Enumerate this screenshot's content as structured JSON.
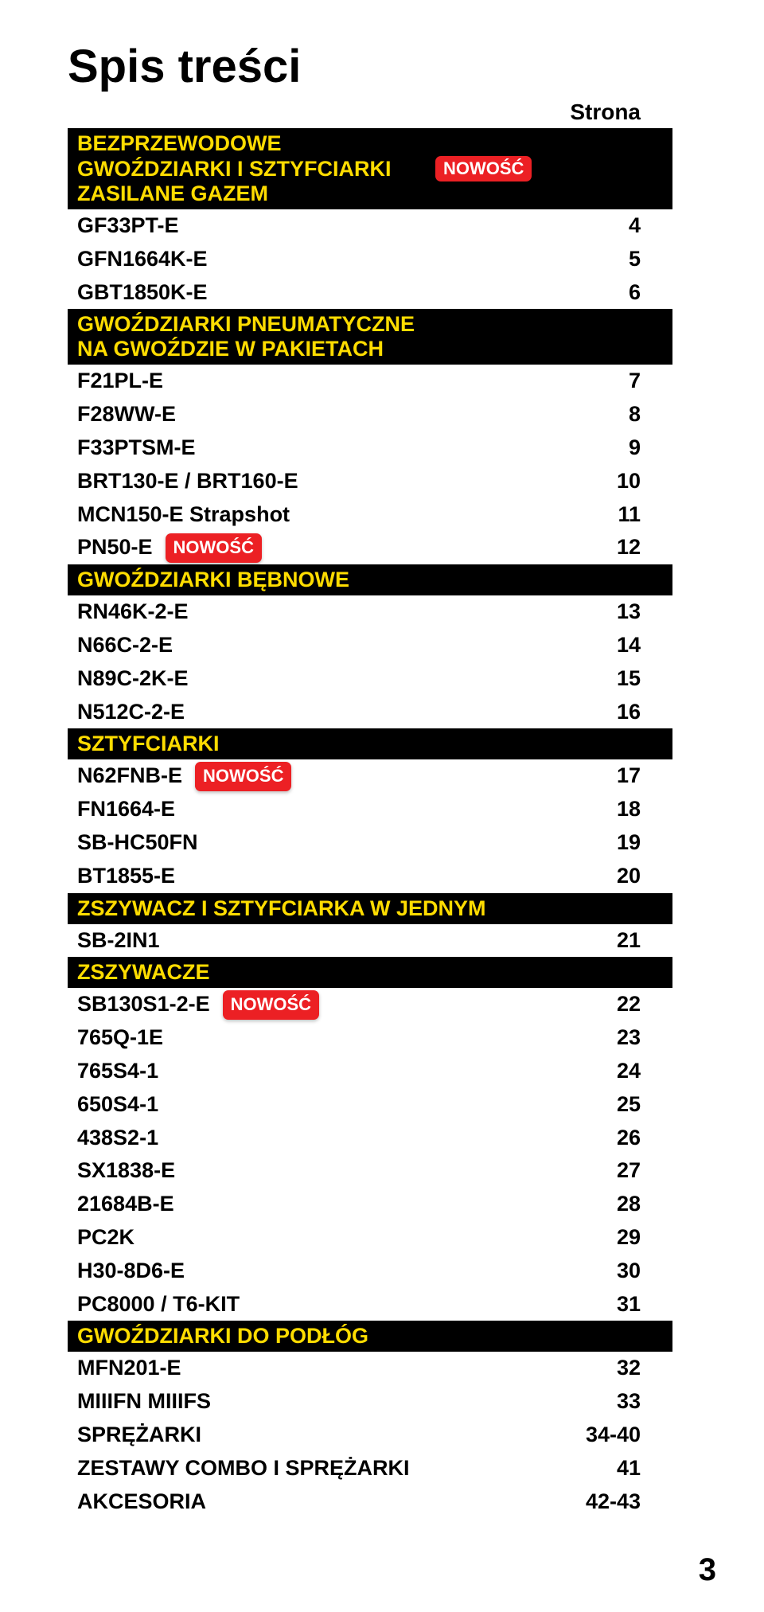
{
  "page": {
    "title": "Spis treści",
    "column_header": "Strona",
    "page_number": "3",
    "badge_text": "NOWOŚĆ",
    "colors": {
      "section_bg": "#000000",
      "section_text": "#fedc00",
      "badge_bg": "#ec2024",
      "badge_text": "#ffffff",
      "body_bg": "#ffffff",
      "text": "#000000"
    },
    "typography": {
      "title_size_pt": 44,
      "row_size_pt": 20,
      "badge_size_pt": 16
    }
  },
  "sections": [
    {
      "header_lines": [
        "BEZPRZEWODOWE",
        "GWOŹDZIARKI I SZTYFCIARKI",
        "ZASILANE GAZEM"
      ],
      "header_badge_after_line": 1,
      "rows": [
        {
          "label": "GF33PT-E",
          "page": "4"
        },
        {
          "label": "GFN1664K-E",
          "page": "5"
        },
        {
          "label": "GBT1850K-E",
          "page": "6"
        }
      ]
    },
    {
      "header_lines": [
        "GWOŹDZIARKI PNEUMATYCZNE",
        "NA GWOŹDZIE W PAKIETACH"
      ],
      "rows": [
        {
          "label": "F21PL-E",
          "page": "7"
        },
        {
          "label": "F28WW-E",
          "page": "8"
        },
        {
          "label": "F33PTSM-E",
          "page": "9"
        },
        {
          "label": "BRT130-E / BRT160-E",
          "page": "10"
        },
        {
          "label": "MCN150-E Strapshot",
          "page": "11"
        },
        {
          "label": "PN50-E",
          "page": "12",
          "badge": true
        }
      ]
    },
    {
      "header_lines": [
        "GWOŹDZIARKI BĘBNOWE"
      ],
      "rows": [
        {
          "label": "RN46K-2-E",
          "page": "13"
        },
        {
          "label": "N66C-2-E",
          "page": "14"
        },
        {
          "label": "N89C-2K-E",
          "page": "15"
        },
        {
          "label": "N512C-2-E",
          "page": "16"
        }
      ]
    },
    {
      "header_lines": [
        "SZTYFCIARKI"
      ],
      "rows": [
        {
          "label": "N62FNB-E",
          "page": "17",
          "badge": true
        },
        {
          "label": "FN1664-E",
          "page": "18"
        },
        {
          "label": "SB-HC50FN",
          "page": "19"
        },
        {
          "label": "BT1855-E",
          "page": "20"
        }
      ]
    },
    {
      "header_lines": [
        "ZSZYWACZ I SZTYFCIARKA W JEDNYM"
      ],
      "rows": [
        {
          "label": "SB-2IN1",
          "page": "21"
        }
      ]
    },
    {
      "header_lines": [
        "ZSZYWACZE"
      ],
      "rows": [
        {
          "label": "SB130S1-2-E",
          "page": "22",
          "badge": true
        },
        {
          "label": "765Q-1E",
          "page": "23"
        },
        {
          "label": "765S4-1",
          "page": "24"
        },
        {
          "label": "650S4-1",
          "page": "25"
        },
        {
          "label": "438S2-1",
          "page": "26"
        },
        {
          "label": "SX1838-E",
          "page": "27"
        },
        {
          "label": "21684B-E",
          "page": "28"
        },
        {
          "label": "PC2K",
          "page": "29"
        },
        {
          "label": "H30-8D6-E",
          "page": "30"
        },
        {
          "label": "PC8000 / T6-KIT",
          "page": "31"
        }
      ]
    },
    {
      "header_lines": [
        "GWOŹDZIARKI DO PODŁÓG"
      ],
      "rows": [
        {
          "label": "MFN201-E",
          "page": "32"
        },
        {
          "label": "MIIIFN MIIIFS",
          "page": "33"
        },
        {
          "label": "SPRĘŻARKI",
          "page": "34-40"
        },
        {
          "label": "ZESTAWY COMBO I SPRĘŻARKI",
          "page": "41"
        },
        {
          "label": "AKCESORIA",
          "page": "42-43"
        }
      ]
    }
  ]
}
